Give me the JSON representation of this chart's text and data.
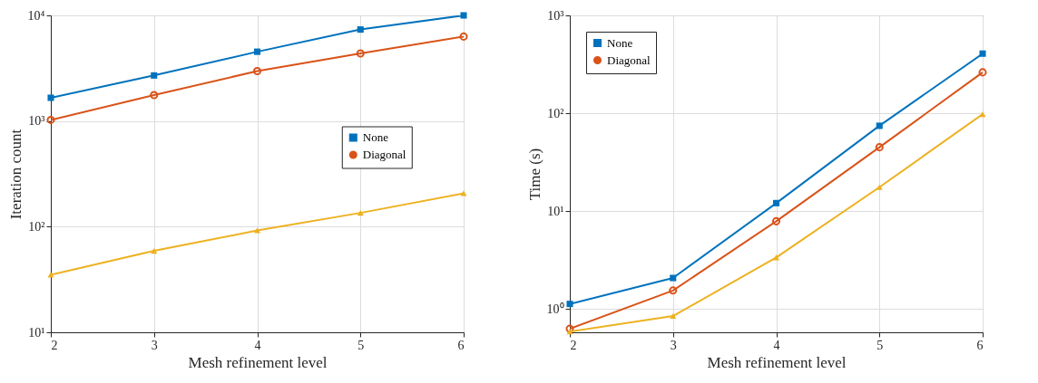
{
  "chart_data": [
    {
      "type": "line",
      "xlabel": "Mesh refinement level",
      "ylabel": "Iteration count",
      "x": [
        2,
        3,
        4,
        5,
        6
      ],
      "xlim": [
        2,
        6
      ],
      "xticks": [
        2,
        3,
        4,
        5,
        6
      ],
      "log": "y",
      "ylim": [
        10,
        10000
      ],
      "yticks": [
        {
          "value": 10,
          "label": "10¹"
        },
        {
          "value": 100,
          "label": "10²"
        },
        {
          "value": 1000,
          "label": "10³"
        },
        {
          "value": 10000,
          "label": "10⁴"
        }
      ],
      "grid": true,
      "legend": "right",
      "series": [
        {
          "name": "None",
          "color": "#0072bd",
          "marker": "square",
          "values": [
            1660,
            2700,
            4530,
            7350,
            10000
          ]
        },
        {
          "name": "Diagonal",
          "color": "#d95319",
          "marker": "circle",
          "values": [
            1025,
            1760,
            2970,
            4370,
            6300
          ]
        },
        {
          "color": "#edb120",
          "marker": "triangle",
          "values": [
            35,
            59,
            92,
            135,
            207
          ]
        }
      ]
    },
    {
      "type": "line",
      "xlabel": "Mesh refinement level",
      "ylabel": "Time (s)",
      "x": [
        2,
        3,
        4,
        5,
        6
      ],
      "xlim": [
        2,
        6
      ],
      "xticks": [
        2,
        3,
        4,
        5,
        6
      ],
      "log": "y",
      "ylim": [
        0.58,
        1000
      ],
      "yticks": [
        {
          "value": 1,
          "label": "10⁰"
        },
        {
          "value": 10,
          "label": "10¹"
        },
        {
          "value": 100,
          "label": "10²"
        },
        {
          "value": 1000,
          "label": "10³"
        }
      ],
      "grid": true,
      "legend": "top left",
      "series": [
        {
          "name": "None",
          "color": "#0072bd",
          "marker": "square",
          "values": [
            1.13,
            2.08,
            12.1,
            74.6,
            407
          ]
        },
        {
          "name": "Diagonal",
          "color": "#d95319",
          "marker": "circle",
          "values": [
            0.63,
            1.55,
            7.9,
            45,
            262
          ]
        },
        {
          "color": "#edb120",
          "marker": "triangle",
          "values": [
            0.59,
            0.85,
            3.37,
            17.6,
            98
          ]
        }
      ]
    }
  ]
}
